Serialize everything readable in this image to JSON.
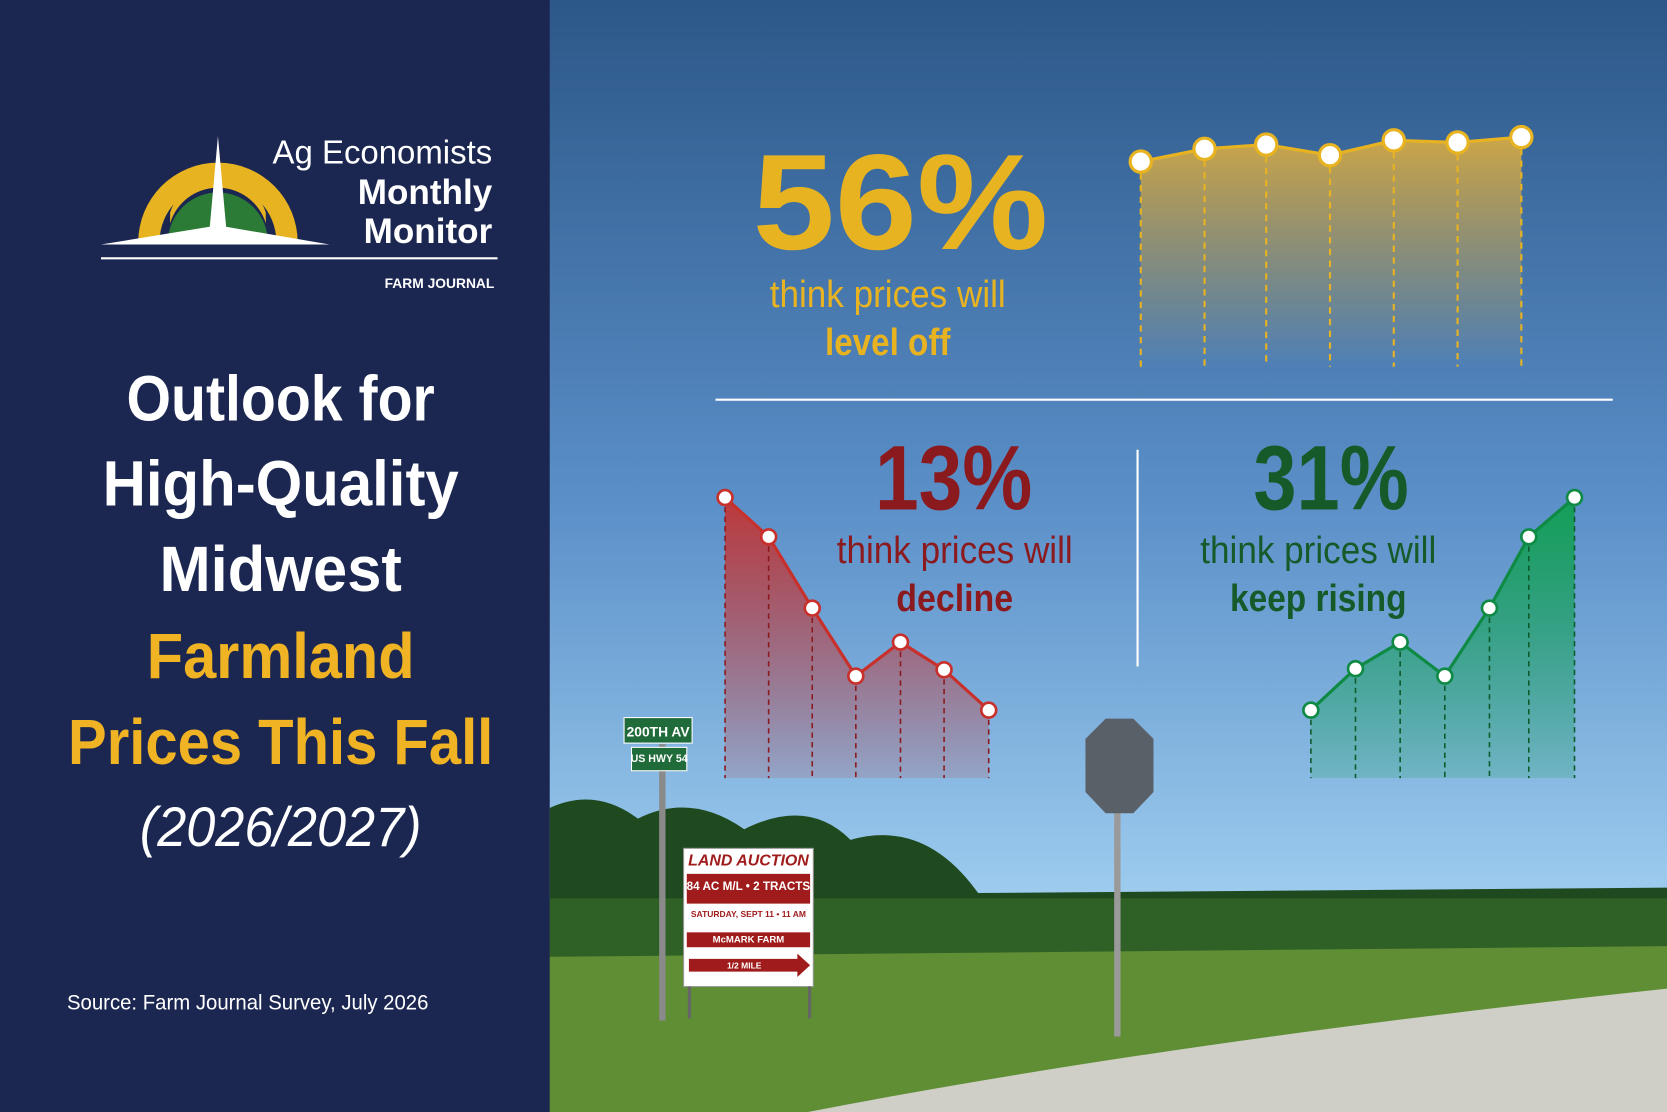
{
  "logo": {
    "line1": "Ag Economists",
    "line2": "Monthly",
    "line3": "Monitor",
    "brand": "FARM JOURNAL"
  },
  "title": {
    "line1": "Outlook for",
    "line2": "High-Quality",
    "line3": "Midwest",
    "highlight1": "Farmland",
    "highlight2": "Prices This Fall",
    "years": "(2026/2027)"
  },
  "source": "Source: Farm Journal Survey, July 2026",
  "stats": [
    {
      "value": "56%",
      "text": "think prices will",
      "emphasis": "level off"
    },
    {
      "value": "13%",
      "text": "think prices will",
      "emphasis": "decline"
    },
    {
      "value": "31%",
      "text": "think prices will",
      "emphasis": "keep rising"
    }
  ],
  "photo_signs": {
    "street1": "200TH AV",
    "street2": "US HWY 54",
    "auction_title": "LAND AUCTION",
    "auction_tracts": "84 AC M/L • 2 TRACTS",
    "auction_date": "SATURDAY, SEPT 11 • 11 AM",
    "auction_farm": "McMARK FARM",
    "auction_distance": "1/2 MILE"
  }
}
